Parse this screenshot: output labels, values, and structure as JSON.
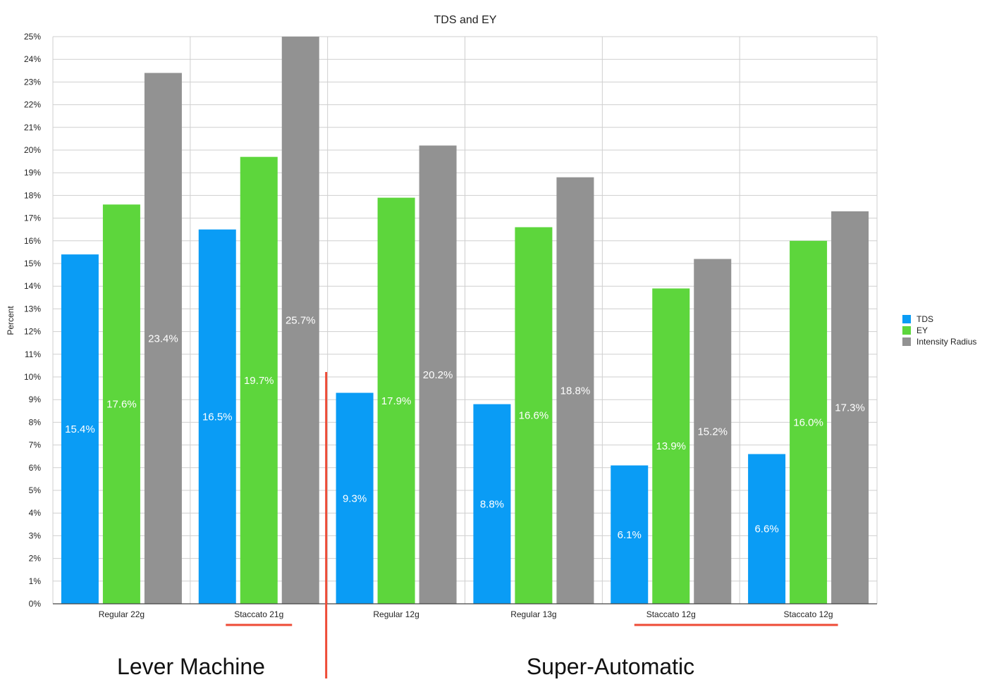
{
  "chart_data": {
    "type": "bar",
    "title": "TDS and EY",
    "xlabel": "",
    "ylabel": "Percent",
    "ylim": [
      0,
      25
    ],
    "y_ticks": [
      "0%",
      "1%",
      "2%",
      "3%",
      "4%",
      "5%",
      "6%",
      "7%",
      "8%",
      "9%",
      "10%",
      "11%",
      "12%",
      "13%",
      "14%",
      "15%",
      "16%",
      "17%",
      "18%",
      "19%",
      "20%",
      "21%",
      "22%",
      "23%",
      "24%",
      "25%"
    ],
    "categories": [
      "Regular 22g",
      "Staccato 21g",
      "Regular 12g",
      "Regular 13g",
      "Staccato 12g",
      "Staccato 12g"
    ],
    "series": [
      {
        "name": "TDS",
        "color": "#0a9cf5",
        "values": [
          15.4,
          16.5,
          9.3,
          8.8,
          6.1,
          6.6
        ],
        "labels": [
          "15.4%",
          "16.5%",
          "9.3%",
          "8.8%",
          "6.1%",
          "6.6%"
        ]
      },
      {
        "name": "EY",
        "color": "#5dd63c",
        "values": [
          17.6,
          19.7,
          17.9,
          16.6,
          13.9,
          16.0
        ],
        "labels": [
          "17.6%",
          "19.7%",
          "17.9%",
          "16.6%",
          "13.9%",
          "16.0%"
        ]
      },
      {
        "name": "Intensity Radius",
        "color": "#929292",
        "values": [
          23.4,
          25.7,
          20.2,
          18.8,
          15.2,
          17.3
        ],
        "labels": [
          "23.4%",
          "25.7%",
          "20.2%",
          "18.8%",
          "15.2%",
          "17.3%"
        ]
      }
    ],
    "grid": true,
    "legend_position": "right",
    "annotations": {
      "group_labels": [
        "Lever Machine",
        "Super-Automatic"
      ],
      "annotation_color": "#ee4b36",
      "underlined_categories": [
        1,
        4,
        5
      ]
    }
  }
}
